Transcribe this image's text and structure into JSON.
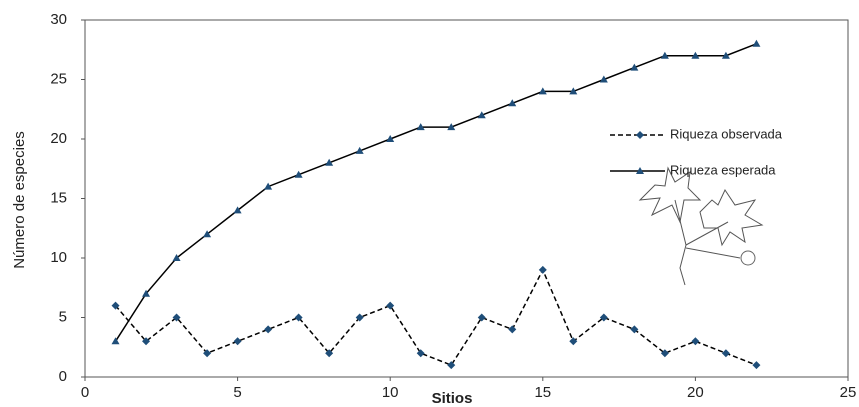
{
  "chart_data": {
    "type": "line",
    "x_label": "Sitios",
    "y_label": "Número de especies",
    "x": [
      1,
      2,
      3,
      4,
      5,
      6,
      7,
      8,
      9,
      10,
      11,
      12,
      13,
      14,
      15,
      16,
      17,
      18,
      19,
      20,
      21,
      22
    ],
    "series": [
      {
        "name": "Riqueza observada",
        "color": "#000000",
        "marker_color": "#1f4e79",
        "marker": "diamond",
        "linestyle": "dashed",
        "values": [
          6,
          3,
          5,
          2,
          3,
          4,
          5,
          2,
          5,
          6,
          2,
          1,
          5,
          4,
          9,
          3,
          5,
          4,
          2,
          3,
          2,
          1
        ]
      },
      {
        "name": "Riqueza esperada",
        "color": "#000000",
        "marker_color": "#1f4e79",
        "marker": "triangle",
        "linestyle": "solid",
        "values": [
          3,
          7,
          10,
          12,
          14,
          16,
          17,
          18,
          19,
          20,
          21,
          21,
          22,
          23,
          24,
          24,
          25,
          26,
          27,
          27,
          27,
          28
        ]
      }
    ],
    "xlim": [
      0,
      25
    ],
    "xticks": [
      0,
      5,
      10,
      15,
      20,
      25
    ],
    "ylim": [
      0,
      30
    ],
    "yticks": [
      0,
      5,
      10,
      15,
      20,
      25,
      30
    ],
    "legend": "right"
  }
}
